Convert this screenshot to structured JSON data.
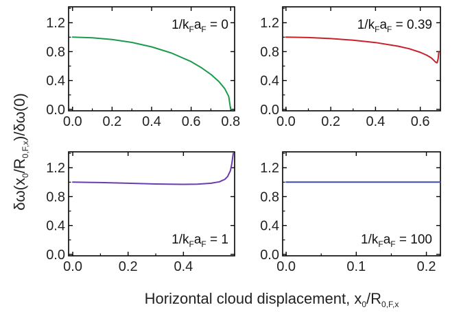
{
  "figure": {
    "ylabel": "δω(x0/R0,F,x)/δω(0)",
    "xlabel": "Horizontal cloud displacement, x0/R0,F,x"
  },
  "chart_data": [
    {
      "type": "line",
      "annotation": "1/kFaF = 0",
      "anno_parts": {
        "pre": "1/k",
        "sub1": "F",
        "mid": "a",
        "sub2": "F",
        "post": " = 0"
      },
      "xlim": [
        -0.02,
        0.82
      ],
      "ylim": [
        -0.02,
        1.42
      ],
      "xticks": [
        0.0,
        0.2,
        0.4,
        0.6,
        0.8
      ],
      "xtick_labels": [
        "0.0",
        "0.2",
        "0.4",
        "0.6",
        "0.8"
      ],
      "yticks": [
        0.0,
        0.4,
        0.8,
        1.2
      ],
      "ytick_labels": [
        "0.0",
        "0.4",
        "0.8",
        "1.2"
      ],
      "color": "#1a9a4a",
      "series": [
        {
          "x": [
            0.0,
            0.1,
            0.2,
            0.3,
            0.4,
            0.5,
            0.6,
            0.65,
            0.7,
            0.74,
            0.77,
            0.79,
            0.8
          ],
          "y": [
            1.0,
            0.992,
            0.968,
            0.927,
            0.866,
            0.781,
            0.661,
            0.581,
            0.484,
            0.386,
            0.287,
            0.18,
            0.0
          ]
        }
      ]
    },
    {
      "type": "line",
      "annotation": "1/kFaF = 0.39",
      "anno_parts": {
        "pre": "1/k",
        "sub1": "F",
        "mid": "a",
        "sub2": "F",
        "post": " = 0.39"
      },
      "xlim": [
        -0.015,
        0.69
      ],
      "ylim": [
        -0.02,
        1.42
      ],
      "xticks": [
        0.0,
        0.2,
        0.4,
        0.6
      ],
      "xtick_labels": [
        "0.0",
        "0.2",
        "0.4",
        "0.6"
      ],
      "yticks": [
        0.0,
        0.4,
        0.8,
        1.2
      ],
      "ytick_labels": [
        "0.0",
        "0.4",
        "0.8",
        "1.2"
      ],
      "color": "#c8202a",
      "series": [
        {
          "x": [
            0.0,
            0.1,
            0.2,
            0.3,
            0.4,
            0.5,
            0.55,
            0.6,
            0.63,
            0.65,
            0.66,
            0.67,
            0.675,
            0.68,
            0.683
          ],
          "y": [
            1.0,
            0.995,
            0.98,
            0.958,
            0.925,
            0.875,
            0.84,
            0.79,
            0.748,
            0.71,
            0.68,
            0.65,
            0.645,
            0.7,
            0.8
          ]
        }
      ]
    },
    {
      "type": "line",
      "annotation": "1/kFaF = 1",
      "anno_parts": {
        "pre": "1/k",
        "sub1": "F",
        "mid": "a",
        "sub2": "F",
        "post": " = 1"
      },
      "xlim": [
        -0.015,
        0.585
      ],
      "ylim": [
        -0.02,
        1.42
      ],
      "xticks": [
        0.0,
        0.2,
        0.4
      ],
      "xtick_labels": [
        "0.0",
        "0.2",
        "0.4"
      ],
      "yticks": [
        0.0,
        0.4,
        0.8,
        1.2
      ],
      "ytick_labels": [
        "0.0",
        "0.4",
        "0.8",
        "1.2"
      ],
      "color": "#6a3ab0",
      "series": [
        {
          "x": [
            0.0,
            0.1,
            0.2,
            0.3,
            0.4,
            0.45,
            0.5,
            0.53,
            0.55,
            0.56,
            0.57,
            0.575,
            0.58
          ],
          "y": [
            1.0,
            0.995,
            0.985,
            0.975,
            0.97,
            0.972,
            0.985,
            1.005,
            1.04,
            1.08,
            1.16,
            1.26,
            1.4
          ]
        }
      ]
    },
    {
      "type": "line",
      "annotation": "1/kFaF = 100",
      "anno_parts": {
        "pre": "1/k",
        "sub1": "F",
        "mid": "a",
        "sub2": "F",
        "post": " = 100"
      },
      "xlim": [
        -0.005,
        0.22
      ],
      "ylim": [
        -0.02,
        1.42
      ],
      "xticks": [
        0.0,
        0.1,
        0.2
      ],
      "xtick_labels": [
        "0.0",
        "0.1",
        "0.2"
      ],
      "yticks": [
        0.0,
        0.4,
        0.8,
        1.2
      ],
      "ytick_labels": [
        "0.0",
        "0.4",
        "0.8",
        "1.2"
      ],
      "color": "#3a4aa8",
      "series": [
        {
          "x": [
            0.0,
            0.05,
            0.1,
            0.15,
            0.2,
            0.22
          ],
          "y": [
            1.0,
            1.0,
            1.0,
            1.0,
            1.0,
            1.0
          ]
        }
      ]
    }
  ]
}
